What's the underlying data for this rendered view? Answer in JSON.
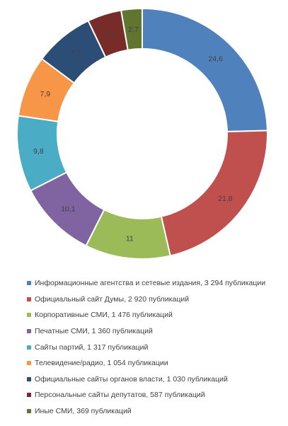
{
  "chart_data": {
    "type": "donut",
    "title": "",
    "values": [
      24.6,
      21.8,
      11,
      10.1,
      9.8,
      7.9,
      7.7,
      4.4,
      2.7
    ],
    "value_labels": [
      "24,6",
      "21,8",
      "11",
      "10,1",
      "9,8",
      "7,9",
      "7,7",
      "4,4",
      "2,7"
    ],
    "legend_position": "bottom",
    "series": [
      {
        "name": "Информационные агентства и сетевые издания, 3 294 публикации",
        "color": "#4F81BD"
      },
      {
        "name": "Официальный сайт Думы, 2 920 публикаций",
        "color": "#C0504D"
      },
      {
        "name": "Корпоративные СМИ, 1 476 публикаций",
        "color": "#9BBB59"
      },
      {
        "name": "Печатные СМИ, 1 360 публикаций",
        "color": "#8064A2"
      },
      {
        "name": "Сайты партий, 1 317 публикаций",
        "color": "#4BACC6"
      },
      {
        "name": "Телевидение/радио, 1 054 публикации",
        "color": "#F79646"
      },
      {
        "name": "Официальные сайты органов власти, 1 030 публикаций",
        "color": "#2C4D75"
      },
      {
        "name": "Персональные сайты депутатов, 587 публикаций",
        "color": "#772C2A"
      },
      {
        "name": "Иные СМИ, 369 публикаций",
        "color": "#5F7530"
      }
    ]
  }
}
